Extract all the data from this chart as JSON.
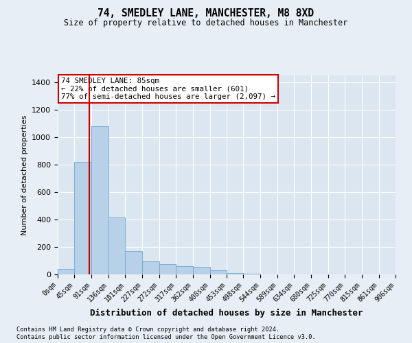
{
  "title1": "74, SMEDLEY LANE, MANCHESTER, M8 8XD",
  "title2": "Size of property relative to detached houses in Manchester",
  "xlabel": "Distribution of detached houses by size in Manchester",
  "ylabel": "Number of detached properties",
  "annotation_line1": "74 SMEDLEY LANE: 85sqm",
  "annotation_line2": "← 22% of detached houses are smaller (601)",
  "annotation_line3": "77% of semi-detached houses are larger (2,097) →",
  "property_size": 85,
  "bin_edges": [
    0,
    45,
    91,
    136,
    181,
    227,
    272,
    317,
    362,
    408,
    453,
    498,
    544,
    589,
    634,
    680,
    725,
    770,
    815,
    861,
    906
  ],
  "bar_heights": [
    40,
    820,
    1080,
    415,
    170,
    95,
    75,
    60,
    55,
    30,
    8,
    4,
    2,
    1,
    1,
    0,
    0,
    0,
    0,
    0
  ],
  "bar_color": "#b8d0e8",
  "bar_edge_color": "#6fa8d0",
  "vline_color": "#cc0000",
  "vline_x": 85,
  "ylim": [
    0,
    1450
  ],
  "yticks": [
    0,
    200,
    400,
    600,
    800,
    1000,
    1200,
    1400
  ],
  "background_color": "#e8eef5",
  "plot_bg_color": "#dce6f0",
  "grid_color": "#ffffff",
  "footer1": "Contains HM Land Registry data © Crown copyright and database right 2024.",
  "footer2": "Contains public sector information licensed under the Open Government Licence v3.0."
}
